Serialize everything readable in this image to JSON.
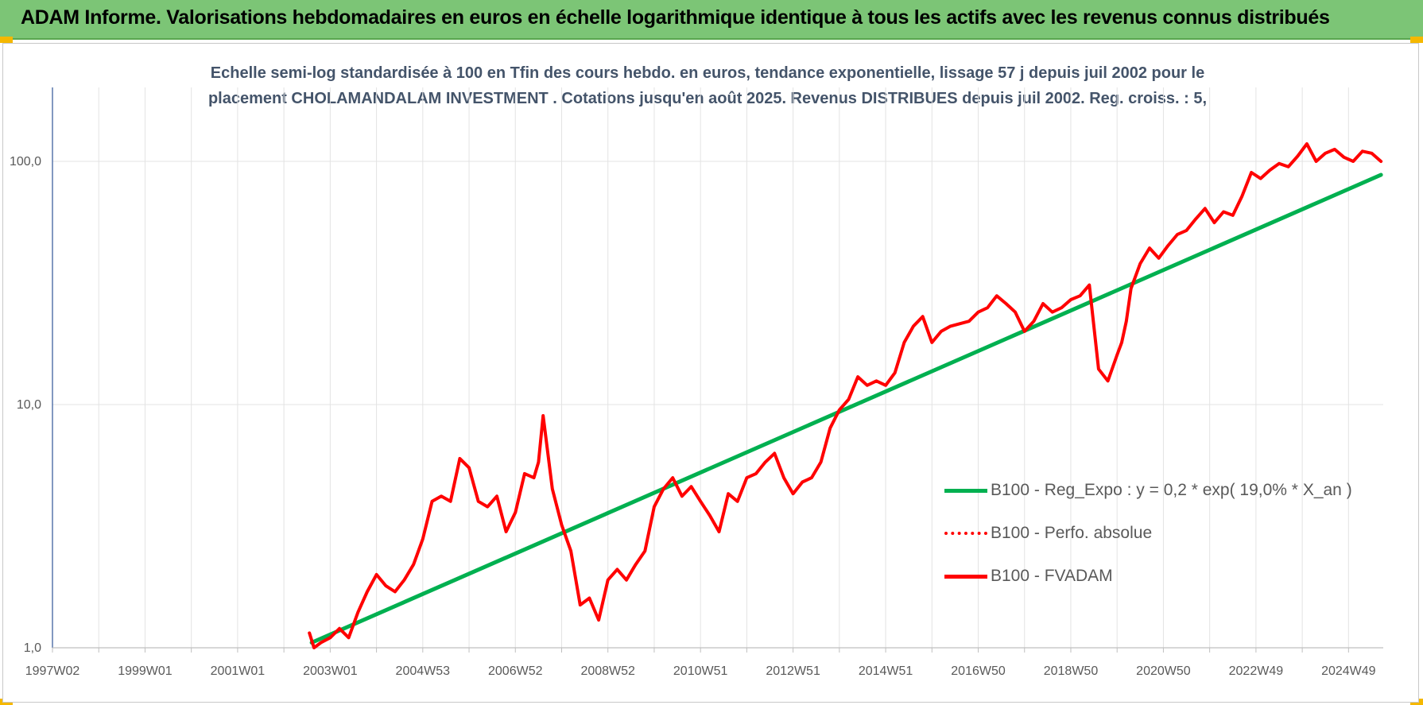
{
  "banner": {
    "title": "ADAM Informe. Valorisations hebdomadaires en euros en échelle logarithmique identique à tous les actifs avec les revenus connus distribués",
    "background_color": "#7cc576",
    "corner_color": "#f5b800"
  },
  "chart_data": {
    "type": "line",
    "title_line1": "Echelle semi-log standardisée à 100 en Tfin des cours hebdo. en euros, tendance exponentielle, lissage 57 j depuis juil 2002 pour le",
    "title_line2": "placement CHOLAMANDALAM INVESTMENT . Cotations jusqu'en août 2025. Revenus DISTRIBUES depuis juil 2002. Reg. croiss. : 5,",
    "x_tick_labels": [
      "1997W02",
      "1999W01",
      "2001W01",
      "2003W01",
      "2004W53",
      "2006W52",
      "2008W52",
      "2010W51",
      "2012W51",
      "2014W51",
      "2016W50",
      "2018W50",
      "2020W50",
      "2022W49",
      "2024W49"
    ],
    "x_range": [
      1997.0,
      2025.75
    ],
    "y_scale": "log",
    "y_tick_labels": [
      "1,0",
      "10,0",
      "100,0"
    ],
    "y_ticks": [
      1,
      10,
      100
    ],
    "y_range": [
      1,
      200
    ],
    "grid": true,
    "legend_position": "right-middle",
    "series": [
      {
        "name": "B100 - Reg_Expo : y = 0,2 * exp( 19,0% *  X_an )",
        "color": "#00b050",
        "style": "solid",
        "x": [
          2002.6,
          2025.7
        ],
        "y": [
          1.05,
          88
        ]
      },
      {
        "name": "B100 - Perfo. absolue",
        "color": "#ff0000",
        "style": "dotted",
        "x": [],
        "y": []
      },
      {
        "name": "B100 - FVADAM",
        "color": "#ff0000",
        "style": "solid",
        "x": [
          2002.55,
          2002.65,
          2002.8,
          2003.0,
          2003.2,
          2003.4,
          2003.6,
          2003.8,
          2004.0,
          2004.2,
          2004.4,
          2004.6,
          2004.8,
          2005.0,
          2005.2,
          2005.4,
          2005.6,
          2005.8,
          2006.0,
          2006.2,
          2006.4,
          2006.6,
          2006.8,
          2007.0,
          2007.2,
          2007.4,
          2007.5,
          2007.6,
          2007.8,
          2008.0,
          2008.2,
          2008.4,
          2008.6,
          2008.8,
          2009.0,
          2009.2,
          2009.4,
          2009.6,
          2009.8,
          2010.0,
          2010.2,
          2010.4,
          2010.6,
          2010.8,
          2011.0,
          2011.2,
          2011.4,
          2011.6,
          2011.8,
          2012.0,
          2012.2,
          2012.4,
          2012.6,
          2012.8,
          2013.0,
          2013.2,
          2013.4,
          2013.6,
          2013.8,
          2014.0,
          2014.2,
          2014.4,
          2014.6,
          2014.8,
          2015.0,
          2015.2,
          2015.4,
          2015.6,
          2015.8,
          2016.0,
          2016.2,
          2016.4,
          2016.6,
          2016.8,
          2017.0,
          2017.2,
          2017.4,
          2017.6,
          2017.8,
          2018.0,
          2018.2,
          2018.4,
          2018.6,
          2018.8,
          2019.0,
          2019.2,
          2019.4,
          2019.6,
          2019.8,
          2020.0,
          2020.1,
          2020.2,
          2020.3,
          2020.5,
          2020.7,
          2020.9,
          2021.1,
          2021.3,
          2021.5,
          2021.7,
          2021.9,
          2022.1,
          2022.3,
          2022.5,
          2022.7,
          2022.9,
          2023.1,
          2023.3,
          2023.5,
          2023.7,
          2023.9,
          2024.1,
          2024.3,
          2024.5,
          2024.7,
          2024.9,
          2025.1,
          2025.3,
          2025.5,
          2025.7
        ],
        "y": [
          1.15,
          1.0,
          1.05,
          1.1,
          1.2,
          1.1,
          1.4,
          1.7,
          2.0,
          1.8,
          1.7,
          1.9,
          2.2,
          2.8,
          4.0,
          4.2,
          4.0,
          6.0,
          5.5,
          4.0,
          3.8,
          4.2,
          3.0,
          3.6,
          5.2,
          5.0,
          5.8,
          9.0,
          4.5,
          3.2,
          2.5,
          1.5,
          1.6,
          1.3,
          1.9,
          2.1,
          1.9,
          2.2,
          2.5,
          3.8,
          4.5,
          5.0,
          4.2,
          4.6,
          4.0,
          3.5,
          3.0,
          4.3,
          4.0,
          5.0,
          5.2,
          5.8,
          6.3,
          5.0,
          4.3,
          4.8,
          5.0,
          5.8,
          8.0,
          9.5,
          10.5,
          13.0,
          12.0,
          12.5,
          12.0,
          13.5,
          18.0,
          21.0,
          23.0,
          18.0,
          20.0,
          21.0,
          21.5,
          22.0,
          24.0,
          25.0,
          28.0,
          26.0,
          24.0,
          20.0,
          22.0,
          26.0,
          24.0,
          25.0,
          27.0,
          28.0,
          31.0,
          14.0,
          12.5,
          16.0,
          18.0,
          22.0,
          30.0,
          38.0,
          44.0,
          40.0,
          45.0,
          50.0,
          52.0,
          58.0,
          64.0,
          56.0,
          62.0,
          60.0,
          72.0,
          90.0,
          85.0,
          92.0,
          98.0,
          95.0,
          105.0,
          118.0,
          100.0,
          108.0,
          112.0,
          104.0,
          100.0,
          110.0,
          108.0,
          100.0
        ]
      }
    ]
  }
}
